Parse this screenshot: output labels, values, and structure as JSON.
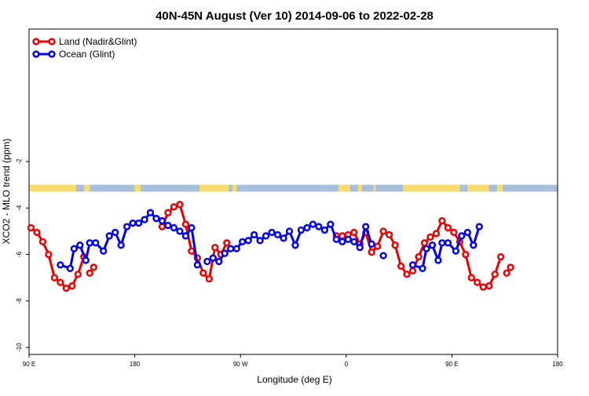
{
  "chart_data": {
    "type": "line",
    "title": "40N-45N August (Ver 10)   2014-09-06 to 2022-02-28",
    "xlabel": "Longitude (deg E)",
    "ylabel": "XCO2 - MLO trend (ppm)",
    "xlim": [
      -90,
      180
    ],
    "ylim": [
      -10.3,
      3.7
    ],
    "xticks": [
      {
        "value": -90,
        "label": "90 E"
      },
      {
        "value": -36,
        "label": "180"
      },
      {
        "value": 18,
        "label": "90 W"
      },
      {
        "value": 72,
        "label": "0"
      },
      {
        "value": 126,
        "label": "90 E"
      },
      {
        "value": 180,
        "label": "180"
      }
    ],
    "yticks": [
      {
        "value": -2,
        "label": "-2"
      },
      {
        "value": -4,
        "label": "-4"
      },
      {
        "value": -6,
        "label": "-6"
      },
      {
        "value": -8,
        "label": "-8"
      },
      {
        "value": -10,
        "label": "-10"
      }
    ],
    "legend_position": "top-left",
    "land_band": {
      "y_top": -3.0,
      "y_bottom": -3.3,
      "land_color": "#f9dc70",
      "ocean_color": "#a8bfdc"
    },
    "series": [
      {
        "name": "Land (Nadir&Glint)",
        "color": "#ee0000",
        "points": [
          [
            -89,
            -4.85
          ],
          [
            -86,
            -5.05
          ],
          [
            -83,
            -5.45
          ],
          [
            -80,
            -6.0
          ],
          [
            -77,
            -7.0
          ],
          [
            -74,
            -7.2
          ],
          [
            -71,
            -7.45
          ],
          [
            -68,
            -7.35
          ],
          [
            -65,
            -6.85
          ],
          [
            -62,
            -6.1
          ],
          null,
          [
            -59,
            -6.8
          ],
          [
            -57,
            -6.55
          ],
          null,
          [
            -22,
            -4.8
          ],
          [
            -19,
            -4.2
          ],
          [
            -16,
            -3.95
          ],
          [
            -13,
            -3.85
          ],
          [
            -10,
            -4.7
          ],
          [
            -7,
            -5.85
          ],
          [
            -4,
            -6.15
          ],
          [
            -1,
            -6.8
          ],
          [
            2,
            -7.05
          ],
          [
            5,
            -5.7
          ],
          [
            8,
            -6.0
          ],
          [
            11,
            -5.5
          ],
          null,
          [
            67,
            -5.2
          ],
          [
            70,
            -5.2
          ],
          [
            73,
            -5.15
          ],
          [
            76,
            -5.05
          ],
          [
            79,
            -5.55
          ],
          [
            82,
            -5.05
          ],
          [
            85,
            -5.9
          ],
          [
            88,
            -5.65
          ],
          [
            91,
            -5.0
          ],
          [
            94,
            -5.15
          ],
          [
            97,
            -5.6
          ],
          [
            100,
            -6.5
          ],
          [
            103,
            -6.85
          ],
          [
            106,
            -6.7
          ],
          [
            109,
            -6.1
          ],
          [
            112,
            -5.5
          ],
          [
            115,
            -5.25
          ],
          [
            118,
            -5.1
          ],
          [
            121,
            -4.55
          ],
          [
            124,
            -4.85
          ],
          [
            127,
            -5.05
          ],
          [
            130,
            -5.45
          ],
          [
            133,
            -6.0
          ],
          [
            136,
            -7.0
          ],
          [
            139,
            -7.2
          ],
          [
            142,
            -7.4
          ],
          [
            145,
            -7.35
          ],
          [
            148,
            -6.85
          ],
          [
            151,
            -6.1
          ],
          null,
          [
            154,
            -6.8
          ],
          [
            156,
            -6.55
          ]
        ]
      },
      {
        "name": "Ocean (Glint)",
        "color": "#0000ee",
        "points": [
          [
            -74,
            -6.45
          ],
          [
            -69,
            -6.6
          ],
          [
            -67,
            -5.75
          ],
          [
            -64,
            -5.6
          ],
          [
            -61,
            -6.25
          ],
          [
            -59,
            -5.5
          ],
          [
            -56,
            -5.5
          ],
          [
            -52,
            -5.85
          ],
          [
            -49,
            -5.2
          ],
          [
            -46,
            -5.05
          ],
          [
            -43,
            -5.6
          ],
          [
            -40,
            -4.8
          ],
          [
            -37,
            -4.65
          ],
          [
            -34,
            -4.65
          ],
          [
            -31,
            -4.5
          ],
          [
            -28,
            -4.2
          ],
          [
            -25,
            -4.45
          ],
          [
            -22,
            -4.55
          ],
          [
            -19,
            -4.75
          ],
          [
            -16,
            -4.85
          ],
          [
            -13,
            -5.0
          ],
          [
            -10,
            -5.2
          ],
          [
            -7,
            -4.85
          ],
          [
            -4,
            -6.45
          ],
          null,
          [
            1,
            -6.3
          ],
          [
            4,
            -6.15
          ],
          [
            7,
            -6.3
          ],
          [
            10,
            -5.95
          ],
          [
            13,
            -5.75
          ],
          [
            16,
            -5.75
          ],
          [
            19,
            -5.45
          ],
          [
            22,
            -5.4
          ],
          [
            25,
            -5.15
          ],
          [
            28,
            -5.4
          ],
          [
            31,
            -5.2
          ],
          [
            34,
            -5.05
          ],
          [
            37,
            -5.15
          ],
          [
            40,
            -5.3
          ],
          [
            43,
            -5.0
          ],
          [
            46,
            -5.6
          ],
          [
            49,
            -4.95
          ],
          [
            52,
            -4.85
          ],
          [
            55,
            -4.7
          ],
          [
            58,
            -4.8
          ],
          [
            61,
            -4.95
          ],
          [
            64,
            -4.7
          ],
          [
            67,
            -5.35
          ],
          [
            70,
            -5.45
          ],
          [
            73,
            -5.35
          ],
          [
            76,
            -5.45
          ],
          [
            79,
            -5.7
          ],
          [
            82,
            -4.8
          ],
          [
            85,
            -5.55
          ],
          null,
          [
            91,
            -6.05
          ],
          null,
          [
            106,
            -6.45
          ],
          [
            111,
            -6.6
          ],
          [
            113,
            -5.75
          ],
          [
            116,
            -5.6
          ],
          [
            119,
            -6.25
          ],
          [
            121,
            -5.5
          ],
          [
            124,
            -5.5
          ],
          [
            128,
            -5.85
          ],
          [
            131,
            -5.2
          ],
          [
            134,
            -5.05
          ],
          [
            137,
            -5.6
          ],
          [
            140,
            -4.8
          ]
        ]
      }
    ]
  }
}
